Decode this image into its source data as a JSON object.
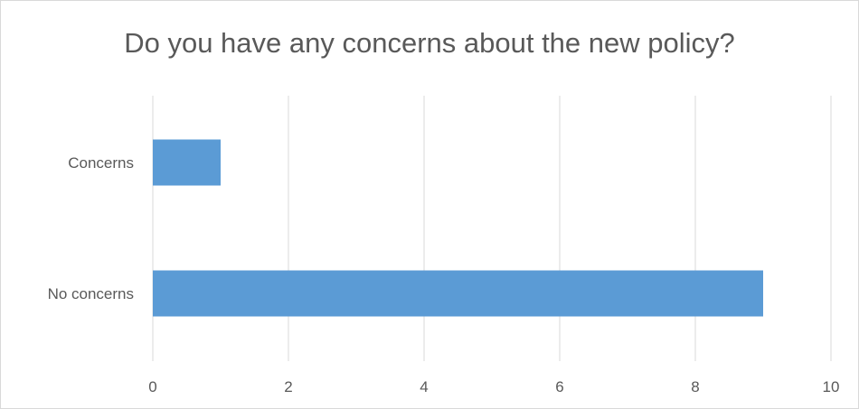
{
  "chart_data": {
    "type": "bar",
    "orientation": "horizontal",
    "title": "Do you have any concerns about the new policy?",
    "categories": [
      "Concerns",
      "No concerns"
    ],
    "values": [
      1,
      9
    ],
    "xlim": [
      0,
      10
    ],
    "x_ticks": [
      0,
      2,
      4,
      6,
      8,
      10
    ],
    "grid": "vertical",
    "legend": "none",
    "bar_color": "#5b9bd5",
    "grid_color": "#d9d9d9",
    "text_color": "#595959"
  }
}
